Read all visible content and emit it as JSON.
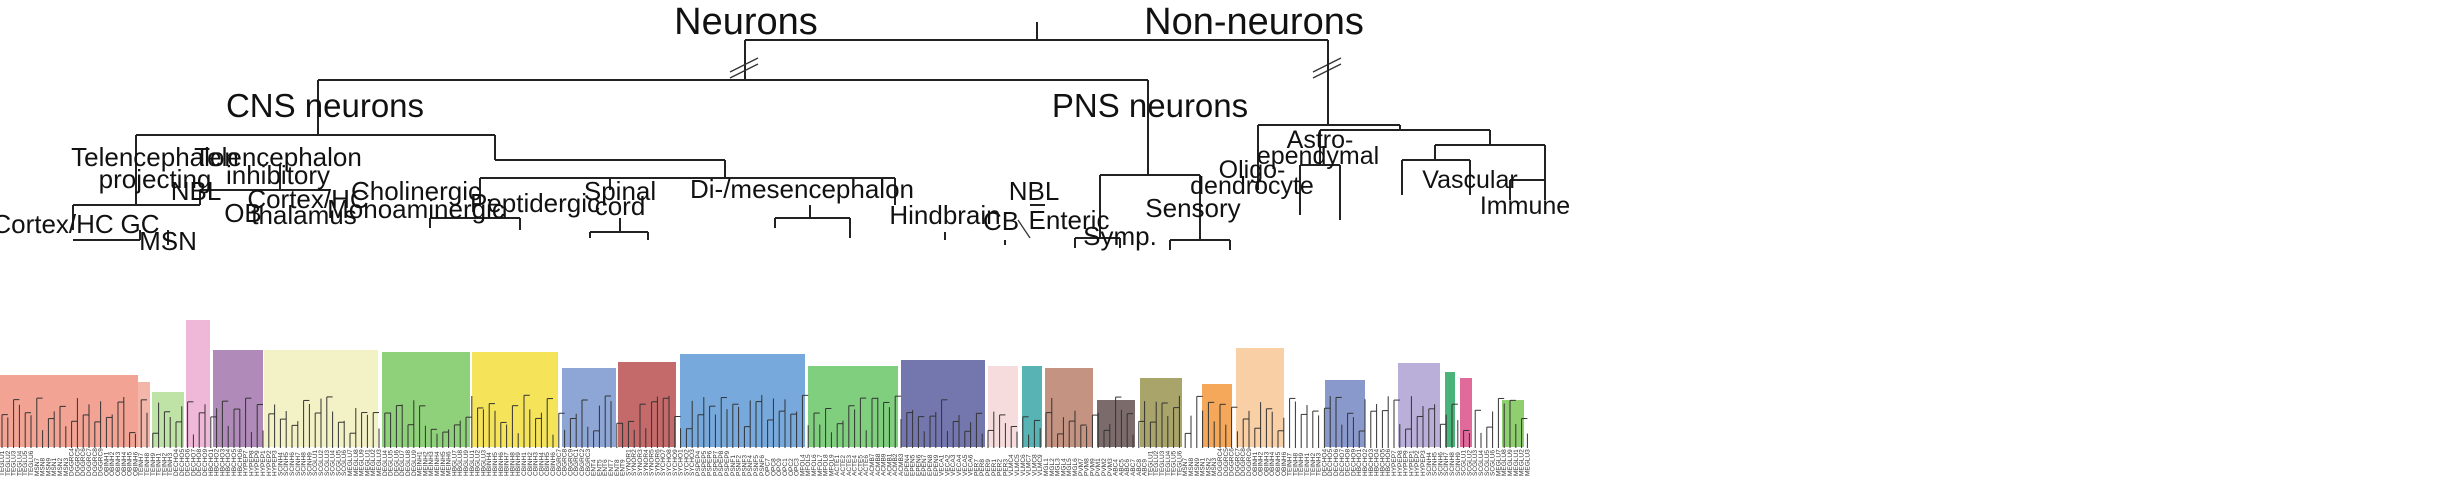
{
  "top_labels": {
    "neurons": "Neurons",
    "non_neurons": "Non-neurons"
  },
  "second_labels": {
    "cns": "CNS neurons",
    "pns": "PNS neurons"
  },
  "group_labels": {
    "tel_proj_1": "Telencephalon",
    "tel_proj_2": "projecting",
    "tel_inh_1": "Telencephalon",
    "tel_inh_2": "inhibitory",
    "nbl_left": "NBL",
    "ob": "OB",
    "cortex_hc": "Cortex/HC",
    "gc": "GC",
    "msn": "MSN",
    "cortex_thal_1": "Cortex/HC",
    "cortex_thal_2": "thalamus",
    "chol_1": "Cholinergic",
    "chol_2": "Monoaminergic",
    "peptidergic": "Peptidergic",
    "spinal_1": "Spinal",
    "spinal_2": "cord",
    "dimes": "Di-/mesencephalon",
    "hindbrain": "Hindbrain",
    "cb": "CB",
    "nbl_right": "NBL",
    "enteric": "Enteric",
    "symp": "Symp.",
    "sensory": "Sensory",
    "oligo_1": "Oligo-",
    "oligo_2": "dendrocyte",
    "astro_1": "Astro-",
    "astro_2": "ependymal",
    "vascular": "Vascular",
    "immune": "Immune"
  },
  "colors": {
    "cortex_hc": "#f2a394",
    "gc": "#f4b6a8",
    "msn": "#bfe3a6",
    "nbl": "#f0b8d8",
    "ob": "#b08ab8",
    "cortex_thal": "#f3f2c6",
    "cholinergic": "#8fd07a",
    "peptidergic": "#f5e35a",
    "spinal_blue": "#8ea6d6",
    "spinal_red": "#c46a6a",
    "dimes": "#77a9dc",
    "dimes_green": "#7fcf7f",
    "hindbrain": "#7476ae",
    "cb": "#f2cfcf",
    "nbl_teal": "#58b4b4",
    "enteric": "#c59382",
    "symp": "#7c6b6b",
    "sensory_olive": "#a9a46a",
    "sensory_orange": "#f5a85a",
    "oligo": "#f9cfa6",
    "astro_blue": "#8a99cc",
    "vascular_purple": "#b9afd9",
    "vascular_green": "#4ab37a",
    "vascular_pink": "#e06a9a",
    "immune_green": "#8fcf6f"
  },
  "leaf_prefixes": [
    "TEGLU",
    "MSN",
    "DGGRC",
    "OBINH",
    "TEINH",
    "DECHO",
    "HBCHO",
    "HYPEP",
    "SCINH",
    "SCGLU",
    "MEGLU",
    "DEGLU",
    "MEINH",
    "HBGLU",
    "HBINH",
    "CBINH",
    "CBGRC",
    "ENT",
    "SYNOR",
    "SYCHO",
    "PSPEP",
    "PSNF",
    "OPC",
    "MFOL",
    "ACTE",
    "ACMB",
    "EPEN",
    "VECA",
    "PER",
    "VLMC",
    "MGL",
    "PVM",
    "ABC"
  ]
}
